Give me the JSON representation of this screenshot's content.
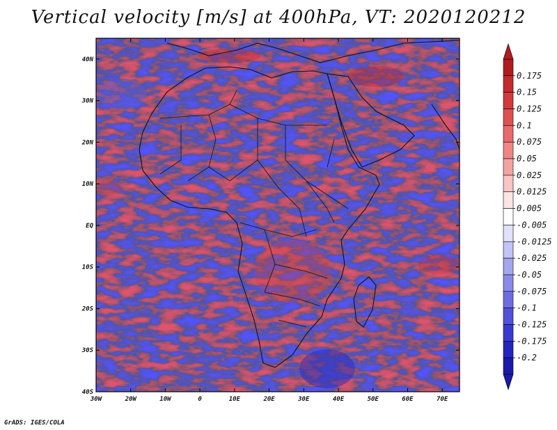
{
  "title": "Vertical velocity [m/s] at 400hPa, VT: 2020120212",
  "footer": "GrADS: IGES/COLA",
  "map": {
    "lat_labels": [
      "40N",
      "30N",
      "20N",
      "10N",
      "EQ",
      "10S",
      "20S",
      "30S",
      "40S"
    ],
    "lat_values": [
      40,
      30,
      20,
      10,
      0,
      -10,
      -20,
      -30,
      -40
    ],
    "lon_labels": [
      "30W",
      "20W",
      "10W",
      "0",
      "10E",
      "20E",
      "30E",
      "40E",
      "50E",
      "60E",
      "70E"
    ],
    "lon_values": [
      -30,
      -20,
      -10,
      0,
      10,
      20,
      30,
      40,
      50,
      60,
      70
    ],
    "lon_range": [
      -30,
      75
    ],
    "lat_range": [
      -40,
      45
    ]
  },
  "colorbar": {
    "labels": [
      "0.175",
      "0.15",
      "0.125",
      "0.1",
      "0.075",
      "0.05",
      "0.025",
      "0.0125",
      "0.005",
      "-0.005",
      "-0.0125",
      "-0.025",
      "-0.05",
      "-0.075",
      "-0.1",
      "-0.125",
      "-0.175",
      "-0.2"
    ],
    "colors": [
      "#b01c20",
      "#c42a2e",
      "#d4393b",
      "#e05050",
      "#e86a6a",
      "#ef8585",
      "#f4a3a3",
      "#f8c4c4",
      "#fde4e4",
      "#ffffff",
      "#e1e1fb",
      "#c3c3f5",
      "#a6a6ee",
      "#8a8ae8",
      "#6e6ee2",
      "#5252da",
      "#3a3ad0",
      "#2424c0",
      "#1a1aa8"
    ]
  }
}
